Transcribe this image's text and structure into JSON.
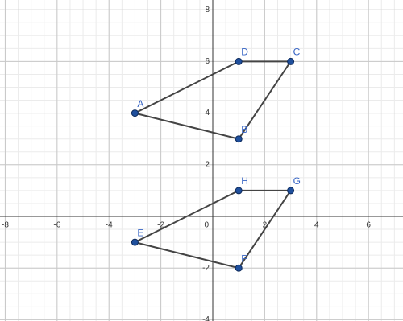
{
  "chart_data": {
    "type": "polygon",
    "xlim": [
      -8.2,
      7.33
    ],
    "ylim": [
      -4.05,
      8.38
    ],
    "xticks": [
      -8,
      -6,
      -4,
      -2,
      0,
      2,
      4,
      6
    ],
    "yticks": [
      -4,
      -2,
      2,
      4,
      6,
      8
    ],
    "grid": true,
    "minor_grid_step": 0.5,
    "shapes": [
      {
        "labels": [
          "A",
          "B",
          "C",
          "D"
        ],
        "x": [
          -3,
          1,
          3,
          1
        ],
        "y": [
          4,
          3,
          6,
          6
        ],
        "color": "#1f4f9c"
      },
      {
        "labels": [
          "E",
          "F",
          "G",
          "H"
        ],
        "x": [
          -3,
          1,
          3,
          1
        ],
        "y": [
          -1,
          -2,
          1,
          1
        ],
        "color": "#1f4f9c"
      }
    ]
  }
}
